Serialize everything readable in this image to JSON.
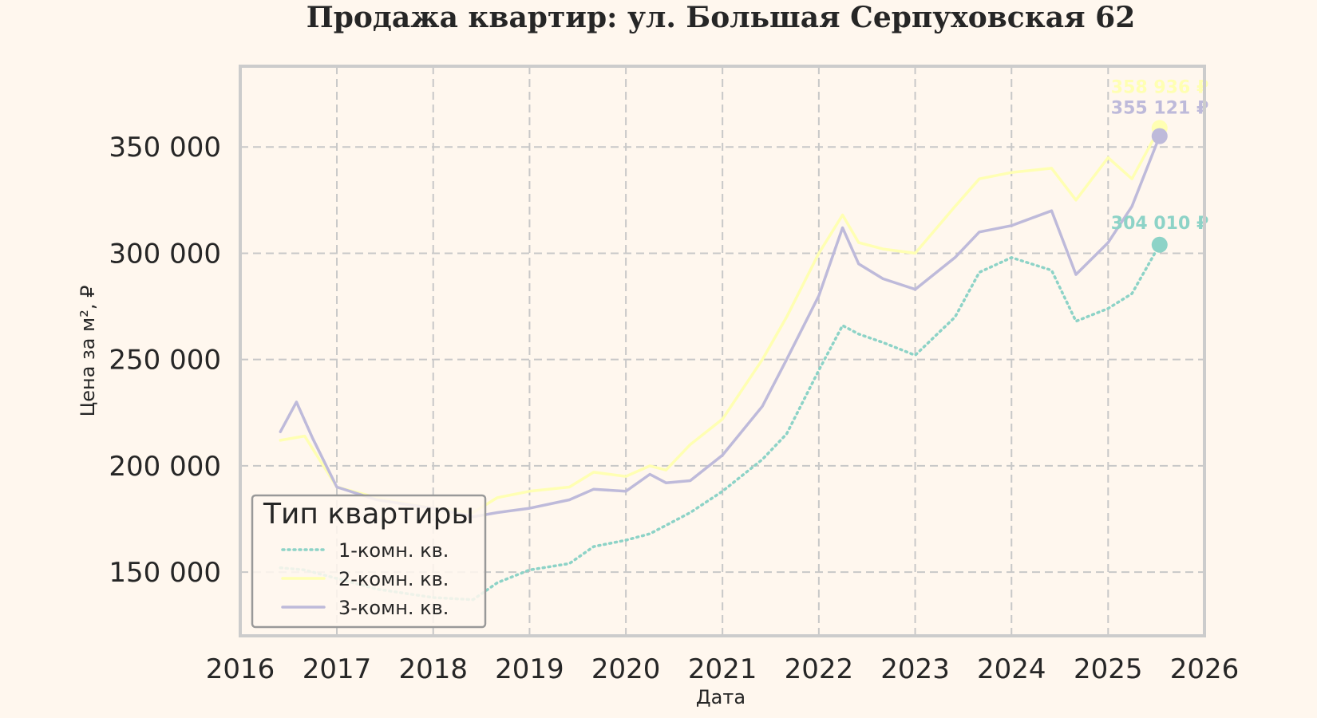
{
  "chart_data": {
    "type": "line",
    "title": "Продажа квартир: ул. Большая Серпуховская 62",
    "xlabel": "Дата",
    "ylabel": "Цена за м², ₽",
    "xlim": [
      "2016-01-01",
      "2026-01-01"
    ],
    "ylim": [
      120000,
      388000
    ],
    "x_ticks": [
      "2016",
      "2017",
      "2018",
      "2019",
      "2020",
      "2021",
      "2022",
      "2023",
      "2024",
      "2025",
      "2026"
    ],
    "y_ticks": [
      150000,
      200000,
      250000,
      300000,
      350000
    ],
    "y_tick_labels": [
      "150 000",
      "200 000",
      "250 000",
      "300 000",
      "350 000"
    ],
    "grid": true,
    "legend": {
      "title": "Тип квартиры",
      "placement": "lower-left"
    },
    "series": [
      {
        "name": "1-комн. кв.",
        "color": "#8dd3c7",
        "style": "dotted",
        "end_label": "304 010 ₽",
        "points": [
          [
            "2016-06-01",
            152000
          ],
          [
            "2016-09-01",
            151000
          ],
          [
            "2017-01-01",
            147000
          ],
          [
            "2017-06-01",
            142000
          ],
          [
            "2018-01-01",
            138000
          ],
          [
            "2018-06-01",
            137000
          ],
          [
            "2018-09-01",
            145000
          ],
          [
            "2019-01-01",
            151000
          ],
          [
            "2019-06-01",
            154000
          ],
          [
            "2019-09-01",
            162000
          ],
          [
            "2020-01-01",
            165000
          ],
          [
            "2020-04-01",
            168000
          ],
          [
            "2020-06-01",
            172000
          ],
          [
            "2020-09-01",
            178000
          ],
          [
            "2021-01-01",
            188000
          ],
          [
            "2021-06-01",
            203000
          ],
          [
            "2021-09-01",
            215000
          ],
          [
            "2022-01-01",
            245000
          ],
          [
            "2022-04-01",
            266000
          ],
          [
            "2022-06-01",
            262000
          ],
          [
            "2022-09-01",
            258000
          ],
          [
            "2023-01-01",
            252000
          ],
          [
            "2023-06-01",
            270000
          ],
          [
            "2023-09-01",
            291000
          ],
          [
            "2024-01-01",
            298000
          ],
          [
            "2024-06-01",
            292000
          ],
          [
            "2024-09-01",
            268000
          ],
          [
            "2025-01-01",
            274000
          ],
          [
            "2025-04-01",
            281000
          ],
          [
            "2025-07-15",
            304010
          ]
        ]
      },
      {
        "name": "2-комн. кв.",
        "color": "#ffffb3",
        "style": "solid",
        "end_label": "358 936 ₽",
        "points": [
          [
            "2016-06-01",
            212000
          ],
          [
            "2016-09-01",
            214000
          ],
          [
            "2017-01-01",
            190000
          ],
          [
            "2017-06-01",
            185000
          ],
          [
            "2018-01-01",
            180000
          ],
          [
            "2018-06-01",
            178000
          ],
          [
            "2018-09-01",
            185000
          ],
          [
            "2019-01-01",
            188000
          ],
          [
            "2019-06-01",
            190000
          ],
          [
            "2019-09-01",
            197000
          ],
          [
            "2020-01-01",
            195000
          ],
          [
            "2020-04-01",
            200000
          ],
          [
            "2020-06-01",
            198000
          ],
          [
            "2020-09-01",
            210000
          ],
          [
            "2021-01-01",
            222000
          ],
          [
            "2021-06-01",
            250000
          ],
          [
            "2021-09-01",
            270000
          ],
          [
            "2022-01-01",
            300000
          ],
          [
            "2022-04-01",
            318000
          ],
          [
            "2022-06-01",
            305000
          ],
          [
            "2022-09-01",
            302000
          ],
          [
            "2023-01-01",
            300000
          ],
          [
            "2023-06-01",
            322000
          ],
          [
            "2023-09-01",
            335000
          ],
          [
            "2024-01-01",
            338000
          ],
          [
            "2024-06-01",
            340000
          ],
          [
            "2024-09-01",
            325000
          ],
          [
            "2025-01-01",
            345000
          ],
          [
            "2025-04-01",
            335000
          ],
          [
            "2025-07-15",
            358936
          ]
        ]
      },
      {
        "name": "3-комн. кв.",
        "color": "#bebada",
        "style": "solid",
        "end_label": "355 121 ₽",
        "points": [
          [
            "2016-06-01",
            216000
          ],
          [
            "2016-08-01",
            230000
          ],
          [
            "2016-10-01",
            213000
          ],
          [
            "2017-01-01",
            190000
          ],
          [
            "2017-06-01",
            184000
          ],
          [
            "2018-01-01",
            180000
          ],
          [
            "2018-06-01",
            176000
          ],
          [
            "2018-09-01",
            178000
          ],
          [
            "2019-01-01",
            180000
          ],
          [
            "2019-06-01",
            184000
          ],
          [
            "2019-09-01",
            189000
          ],
          [
            "2020-01-01",
            188000
          ],
          [
            "2020-04-01",
            196000
          ],
          [
            "2020-06-01",
            192000
          ],
          [
            "2020-09-01",
            193000
          ],
          [
            "2021-01-01",
            205000
          ],
          [
            "2021-06-01",
            228000
          ],
          [
            "2021-09-01",
            250000
          ],
          [
            "2022-01-01",
            280000
          ],
          [
            "2022-04-01",
            312000
          ],
          [
            "2022-06-01",
            295000
          ],
          [
            "2022-09-01",
            288000
          ],
          [
            "2023-01-01",
            283000
          ],
          [
            "2023-06-01",
            298000
          ],
          [
            "2023-09-01",
            310000
          ],
          [
            "2024-01-01",
            313000
          ],
          [
            "2024-06-01",
            320000
          ],
          [
            "2024-09-01",
            290000
          ],
          [
            "2025-01-01",
            305000
          ],
          [
            "2025-04-01",
            322000
          ],
          [
            "2025-07-15",
            355121
          ]
        ]
      }
    ]
  }
}
